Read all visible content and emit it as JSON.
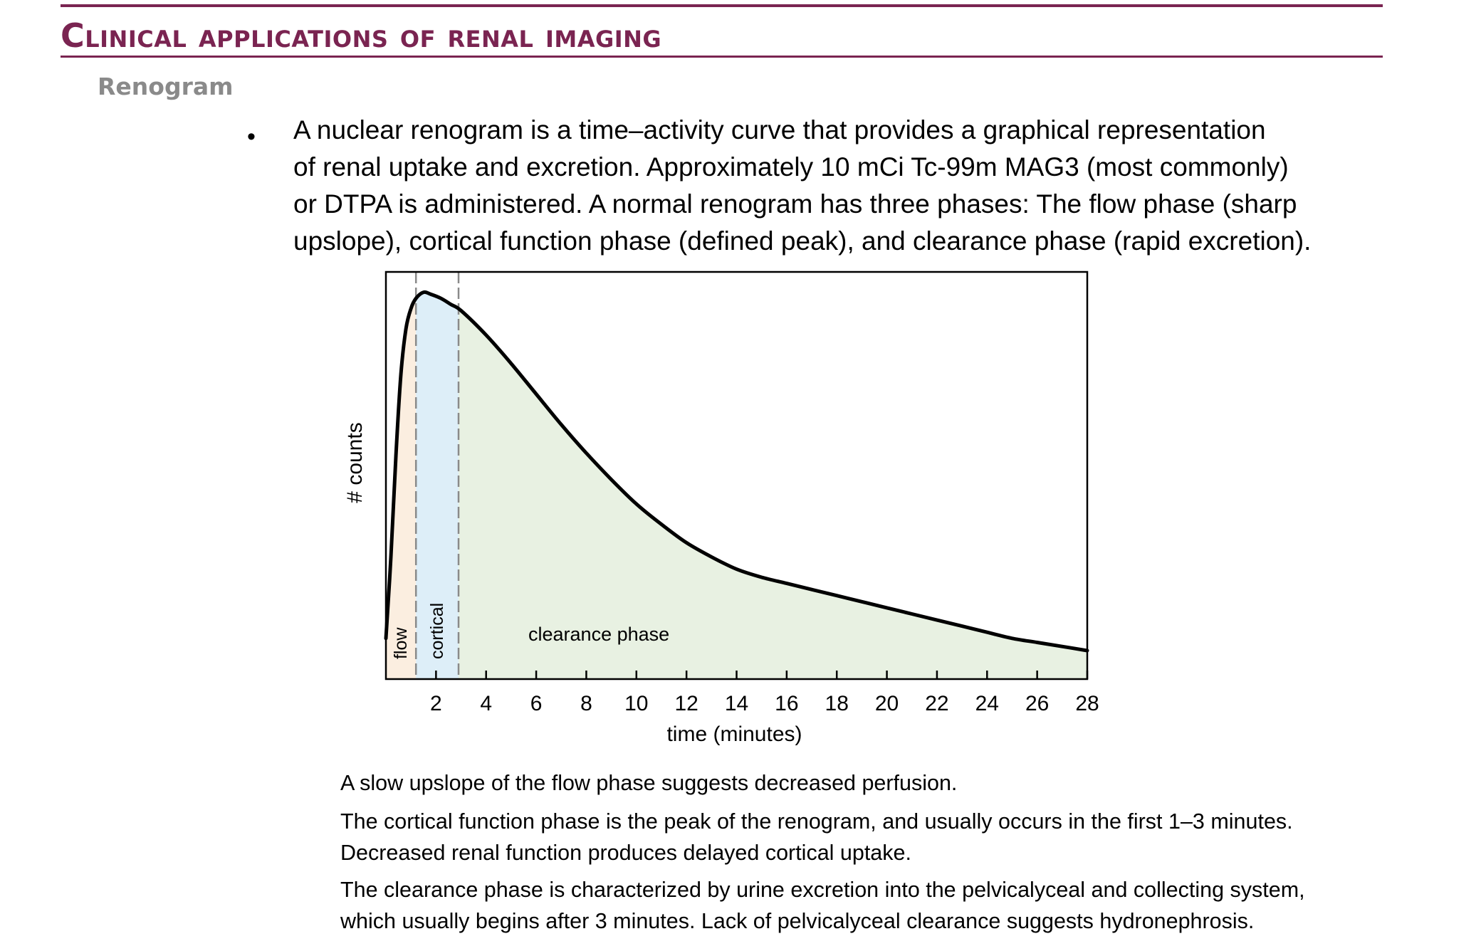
{
  "header": {
    "title": "Clinical applications of renal imaging",
    "subtitle": "Renogram"
  },
  "bullet": {
    "marker": "•",
    "lines": [
      "A nuclear renogram is a time–activity curve that provides a graphical representation",
      "of renal uptake and excretion. Approximately 10 mCi Tc-99m MAG3 (most commonly)",
      "or DTPA is administered. A normal renogram has three phases: The flow phase (sharp",
      "upslope), cortical function phase (defined peak), and clearance phase (rapid excretion)."
    ]
  },
  "chart_data": {
    "type": "area",
    "xlabel": "time (minutes)",
    "ylabel": "# counts",
    "xlim": [
      0,
      28
    ],
    "ylim": [
      0,
      1
    ],
    "x_ticks": [
      2,
      4,
      6,
      8,
      10,
      12,
      14,
      16,
      18,
      20,
      22,
      24,
      26,
      28
    ],
    "grid": false,
    "series": [
      {
        "x": [
          0,
          0.2,
          0.4,
          0.6,
          0.8,
          1.0,
          1.2,
          1.5,
          1.8,
          2.2,
          2.6,
          3.0,
          4.0,
          5.0,
          6.0,
          7.0,
          8.0,
          9.0,
          10.0,
          11.0,
          12.0,
          13.0,
          14.0,
          15.0,
          16.0,
          17.0,
          18.0,
          19.0,
          20.0,
          21.0,
          22.0,
          23.0,
          24.0,
          25.0,
          26.0,
          27.0,
          28.0
        ],
        "y": [
          0.1,
          0.3,
          0.55,
          0.75,
          0.86,
          0.91,
          0.935,
          0.95,
          0.945,
          0.935,
          0.92,
          0.905,
          0.845,
          0.775,
          0.7,
          0.625,
          0.555,
          0.49,
          0.43,
          0.38,
          0.335,
          0.3,
          0.27,
          0.25,
          0.235,
          0.22,
          0.205,
          0.19,
          0.175,
          0.16,
          0.145,
          0.13,
          0.115,
          0.1,
          0.09,
          0.08,
          0.07
        ]
      }
    ],
    "phases": [
      {
        "label": "flow",
        "start": 0,
        "end": 1.2,
        "color": "#fbeee0",
        "label_orientation": "vertical"
      },
      {
        "label": "cortical",
        "start": 1.2,
        "end": 2.9,
        "color": "#ddeef8",
        "label_orientation": "vertical"
      },
      {
        "label": "clearance phase",
        "start": 2.9,
        "end": 28,
        "color": "#e8f1e2",
        "label_orientation": "horizontal"
      }
    ],
    "phase_boundaries": [
      1.2,
      2.9
    ],
    "colors": {
      "curve": "#000000",
      "boundary": "#8a8a8a",
      "frame": "#000000"
    }
  },
  "notes": {
    "flow": "A slow upslope of the flow phase suggests decreased perfusion.",
    "cortical_1": "The cortical function phase is the peak of the renogram, and usually occurs in the first 1–3 minutes.",
    "cortical_2": "Decreased renal function produces delayed cortical uptake.",
    "clearance_1": "The clearance phase is characterized by urine excretion into the pelvicalyceal and collecting system,",
    "clearance_2": "which usually begins after 3 minutes. Lack of pelvicalyceal clearance suggests hydronephrosis."
  },
  "colors": {
    "accent": "#7a2451",
    "subtitle": "#8a8a8a"
  }
}
